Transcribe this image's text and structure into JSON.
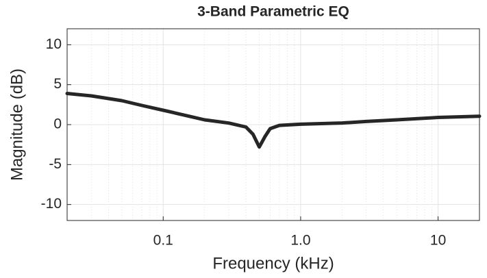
{
  "chart_data": {
    "type": "line",
    "title": "3-Band Parametric EQ",
    "x_label": "Frequency (kHz)",
    "y_label": "Magnitude (dB)",
    "x": [
      0.02,
      0.03,
      0.05,
      0.07,
      0.1,
      0.15,
      0.2,
      0.3,
      0.4,
      0.45,
      0.5,
      0.55,
      0.6,
      0.7,
      1,
      2,
      3,
      5,
      10,
      20
    ],
    "values": [
      3.9,
      3.6,
      3.0,
      2.4,
      1.8,
      1.1,
      0.6,
      0.2,
      -0.3,
      -1.2,
      -2.8,
      -1.5,
      -0.5,
      -0.1,
      0.05,
      0.2,
      0.4,
      0.6,
      0.9,
      1.05
    ],
    "color": "#262626",
    "xscale": "log",
    "xlim": [
      0.02,
      20
    ],
    "xticks": [
      0.1,
      {
        "value": 1,
        "label": "1.0"
      },
      10
    ],
    "ylim": [
      -12,
      12
    ],
    "yticks": [
      -10,
      -5,
      0,
      5,
      10
    ],
    "grid": true,
    "minor_grid": true
  }
}
